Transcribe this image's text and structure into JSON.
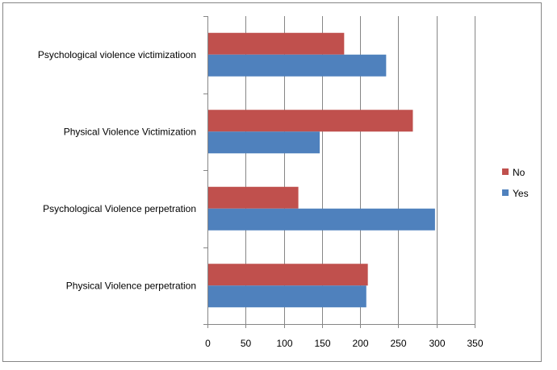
{
  "chart_data": {
    "type": "bar",
    "orientation": "horizontal",
    "categories": [
      "Psychological violence victimizatioon",
      "Physical Violence Victimization",
      "Psychological Violence perpetration",
      "Physical Violence perpetration"
    ],
    "series": [
      {
        "name": "No",
        "color": "#C0504D",
        "values": [
          178,
          268,
          118,
          209
        ]
      },
      {
        "name": "Yes",
        "color": "#4F81BD",
        "values": [
          233,
          146,
          297,
          207
        ]
      }
    ],
    "xlim": [
      0,
      350
    ],
    "xticks": [
      "0",
      "50",
      "100",
      "150",
      "200",
      "250",
      "300",
      "350"
    ],
    "grid": true,
    "legend_position": "right"
  }
}
